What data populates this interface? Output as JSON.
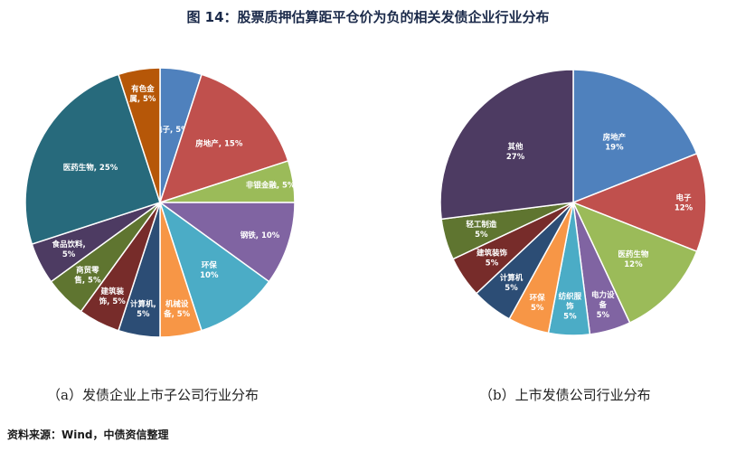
{
  "title": "图 14：股票质押估算距平仓价为负的相关发债企业行业分布",
  "chart_data": [
    {
      "type": "pie",
      "caption": "（a）发债企业上市子公司行业分布",
      "slices": [
        {
          "name": "电子",
          "value": 5,
          "label": "5%",
          "color": "#4f81bd"
        },
        {
          "name": "房地产",
          "value": 15,
          "label": "15%",
          "color": "#c0504d"
        },
        {
          "name": "非银金融",
          "value": 5,
          "label": "5%",
          "color": "#9bbb59"
        },
        {
          "name": "钢铁",
          "value": 10,
          "label": "10%",
          "color": "#8064a2"
        },
        {
          "name": "环保",
          "value": 10,
          "label": "10%",
          "color": "#4bacc6"
        },
        {
          "name": "机械设备",
          "value": 5,
          "label": "5%",
          "color": "#f79646"
        },
        {
          "name": "计算机",
          "value": 5,
          "label": "5%",
          "color": "#2c4d75"
        },
        {
          "name": "建筑装饰",
          "value": 5,
          "label": "5%",
          "color": "#772c2a"
        },
        {
          "name": "商贸零售",
          "value": 5,
          "label": "5%",
          "color": "#5f7530"
        },
        {
          "name": "食品饮料",
          "value": 5,
          "label": "5%",
          "color": "#4d3b62"
        },
        {
          "name": "医药生物",
          "value": 25,
          "label": "25%",
          "color": "#276a7c"
        },
        {
          "name": "有色金属",
          "value": 5,
          "label": "5%",
          "color": "#b65708"
        }
      ]
    },
    {
      "type": "pie",
      "caption": "（b）上市发债公司行业分布",
      "slices": [
        {
          "name": "房地产",
          "value": 19,
          "label": "19%",
          "color": "#4f81bd"
        },
        {
          "name": "电子",
          "value": 12,
          "label": "12%",
          "color": "#c0504d"
        },
        {
          "name": "医药生物",
          "value": 12,
          "label": "12%",
          "color": "#9bbb59"
        },
        {
          "name": "电力设备",
          "value": 5,
          "label": "5%",
          "color": "#8064a2"
        },
        {
          "name": "纺织服饰",
          "value": 5,
          "label": "5%",
          "color": "#4bacc6"
        },
        {
          "name": "环保",
          "value": 5,
          "label": "5%",
          "color": "#f79646"
        },
        {
          "name": "计算机",
          "value": 5,
          "label": "5%",
          "color": "#2c4d75"
        },
        {
          "name": "建筑装饰",
          "value": 5,
          "label": "5%",
          "color": "#772c2a"
        },
        {
          "name": "轻工制造",
          "value": 5,
          "label": "5%",
          "color": "#5f7530"
        },
        {
          "name": "其他",
          "value": 27,
          "label": "27%",
          "color": "#4d3b62"
        }
      ]
    }
  ],
  "source": "资料来源：Wind，中债资信整理"
}
